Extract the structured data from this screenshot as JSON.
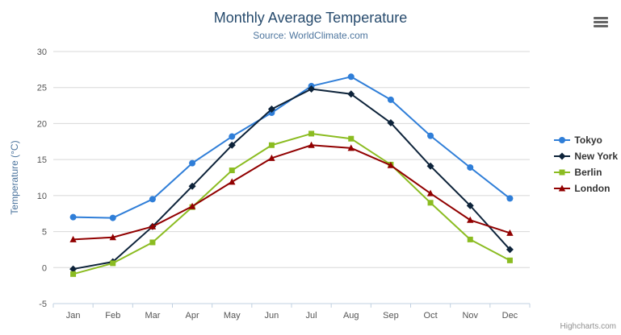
{
  "header": {
    "title": "Monthly Average Temperature",
    "subtitle": "Source: WorldClimate.com"
  },
  "credits": "Highcharts.com",
  "chart_data": {
    "type": "line",
    "title": "Monthly Average Temperature",
    "subtitle": "Source: WorldClimate.com",
    "categories": [
      "Jan",
      "Feb",
      "Mar",
      "Apr",
      "May",
      "Jun",
      "Jul",
      "Aug",
      "Sep",
      "Oct",
      "Nov",
      "Dec"
    ],
    "series": [
      {
        "name": "Tokyo",
        "color": "#2f7ed8",
        "marker": "circle",
        "values": [
          7.0,
          6.9,
          9.5,
          14.5,
          18.2,
          21.5,
          25.2,
          26.5,
          23.3,
          18.3,
          13.9,
          9.6
        ]
      },
      {
        "name": "New York",
        "color": "#0d233a",
        "marker": "diamond",
        "values": [
          -0.2,
          0.8,
          5.7,
          11.3,
          17.0,
          22.0,
          24.8,
          24.1,
          20.1,
          14.1,
          8.6,
          2.5
        ]
      },
      {
        "name": "Berlin",
        "color": "#8bbc21",
        "marker": "square",
        "values": [
          -0.9,
          0.6,
          3.5,
          8.4,
          13.5,
          17.0,
          18.6,
          17.9,
          14.3,
          9.0,
          3.9,
          1.0
        ]
      },
      {
        "name": "London",
        "color": "#910000",
        "marker": "triangle",
        "values": [
          3.9,
          4.2,
          5.7,
          8.5,
          11.9,
          15.2,
          17.0,
          16.6,
          14.2,
          10.3,
          6.6,
          4.8
        ]
      }
    ],
    "xlabel": "",
    "ylabel": "Temperature (°C)",
    "ylim": [
      -5,
      30
    ],
    "yticks": [
      -5,
      0,
      5,
      10,
      15,
      20,
      25,
      30
    ],
    "grid": true,
    "legend_position": "right",
    "grid_color": "#D8D8D8",
    "axis_line_color": "#C0D0E0",
    "label_color": "#555555",
    "axis_title_color": "#4d759e"
  }
}
